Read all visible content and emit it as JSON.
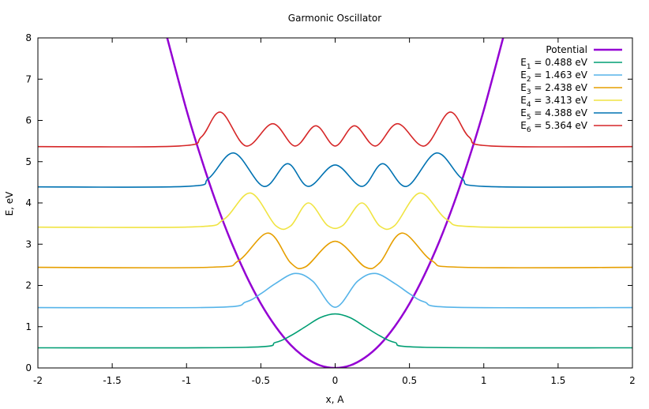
{
  "chart_data": {
    "type": "line",
    "title": "Garmonic Oscillator",
    "xlabel": "x, A",
    "ylabel": "E, eV",
    "xlim": [
      -2,
      2
    ],
    "ylim": [
      0,
      8
    ],
    "x_ticks": [
      -2,
      -1.5,
      -1,
      -0.5,
      0,
      0.5,
      1,
      1.5,
      2
    ],
    "x_tick_labels": [
      "-2",
      "-1.5",
      "-1",
      "-0.5",
      "0",
      "0.5",
      "1",
      "1.5",
      "2"
    ],
    "y_ticks": [
      0,
      1,
      2,
      3,
      4,
      5,
      6,
      7,
      8
    ],
    "y_tick_labels": [
      "0",
      "1",
      "2",
      "3",
      "4",
      "5",
      "6",
      "7",
      "8"
    ],
    "grid": false,
    "legend_position": "top-right",
    "series": [
      {
        "name": "Potential",
        "legend_label": "Potential",
        "role": "potential",
        "color": "#9400d3",
        "x": [
          -1.13,
          -1.0,
          -0.9,
          -0.8,
          -0.7,
          -0.6,
          -0.5,
          -0.4,
          -0.3,
          -0.2,
          -0.1,
          0.0,
          0.1,
          0.2,
          0.3,
          0.4,
          0.5,
          0.6,
          0.7,
          0.8,
          0.9,
          1.0,
          1.13
        ],
        "y": [
          8.0,
          6.25,
          5.07,
          4.0,
          3.06,
          2.25,
          1.56,
          1.0,
          0.56,
          0.25,
          0.06,
          0.0,
          0.06,
          0.25,
          0.56,
          1.0,
          1.56,
          2.25,
          3.06,
          4.0,
          5.07,
          6.25,
          8.0
        ]
      },
      {
        "name": "E1",
        "legend_label": {
          "sub": "1",
          "value": "0.488 eV"
        },
        "n": 1,
        "energy": 0.488,
        "color": "#009e73",
        "x": [
          -2,
          -0.6,
          -0.4,
          -0.3,
          -0.2,
          -0.1,
          0.0,
          0.1,
          0.2,
          0.3,
          0.4,
          0.6,
          2
        ],
        "y": [
          0.488,
          0.5,
          0.62,
          0.78,
          1.0,
          1.22,
          1.31,
          1.22,
          1.0,
          0.78,
          0.62,
          0.5,
          0.488
        ]
      },
      {
        "name": "E2",
        "legend_label": {
          "sub": "2",
          "value": "1.463 eV"
        },
        "n": 2,
        "energy": 1.463,
        "color": "#56b4e9",
        "x": [
          -2,
          -0.8,
          -0.6,
          -0.5,
          -0.4,
          -0.27,
          -0.15,
          0.0,
          0.15,
          0.27,
          0.4,
          0.5,
          0.6,
          0.8,
          2
        ],
        "y": [
          1.463,
          1.47,
          1.6,
          1.8,
          2.05,
          2.29,
          2.1,
          1.47,
          2.1,
          2.29,
          2.05,
          1.8,
          1.6,
          1.47,
          1.463
        ]
      },
      {
        "name": "E3",
        "legend_label": {
          "sub": "3",
          "value": "2.438 eV"
        },
        "n": 3,
        "energy": 2.438,
        "color": "#e69f00",
        "x": [
          -2,
          -0.85,
          -0.65,
          -0.45,
          -0.3,
          -0.2,
          0.0,
          0.2,
          0.3,
          0.45,
          0.65,
          0.85,
          2
        ],
        "y": [
          2.438,
          2.44,
          2.6,
          3.27,
          2.55,
          2.45,
          3.07,
          2.45,
          2.55,
          3.27,
          2.6,
          2.44,
          2.438
        ]
      },
      {
        "name": "E4",
        "legend_label": {
          "sub": "4",
          "value": "3.413 eV"
        },
        "n": 4,
        "energy": 3.413,
        "color": "#f0e442",
        "x": [
          -2,
          -0.95,
          -0.75,
          -0.57,
          -0.4,
          -0.3,
          -0.18,
          -0.05,
          0.05,
          0.18,
          0.3,
          0.4,
          0.57,
          0.75,
          0.95,
          2
        ],
        "y": [
          3.413,
          3.42,
          3.6,
          4.24,
          3.45,
          3.44,
          4.0,
          3.45,
          3.45,
          4.0,
          3.44,
          3.45,
          4.24,
          3.6,
          3.42,
          3.413
        ]
      },
      {
        "name": "E5",
        "legend_label": {
          "sub": "5",
          "value": "4.388 eV"
        },
        "n": 5,
        "energy": 4.388,
        "color": "#0072b2",
        "x": [
          -2,
          -1.0,
          -0.85,
          -0.68,
          -0.48,
          -0.32,
          -0.18,
          0.0,
          0.18,
          0.32,
          0.48,
          0.68,
          0.85,
          1.0,
          2
        ],
        "y": [
          4.388,
          4.4,
          4.6,
          5.21,
          4.4,
          4.95,
          4.4,
          4.92,
          4.4,
          4.95,
          4.4,
          5.21,
          4.6,
          4.4,
          4.388
        ]
      },
      {
        "name": "E6",
        "legend_label": {
          "sub": "6",
          "value": "5.364 eV"
        },
        "n": 6,
        "energy": 5.364,
        "color": "#d62728",
        "x": [
          -2,
          -1.05,
          -0.9,
          -0.77,
          -0.6,
          -0.42,
          -0.27,
          -0.13,
          0.0,
          0.13,
          0.27,
          0.42,
          0.6,
          0.77,
          0.9,
          1.05,
          2
        ],
        "y": [
          5.364,
          5.38,
          5.6,
          6.2,
          5.38,
          5.92,
          5.38,
          5.87,
          5.38,
          5.87,
          5.38,
          5.92,
          5.38,
          6.2,
          5.6,
          5.38,
          5.364
        ]
      }
    ]
  }
}
